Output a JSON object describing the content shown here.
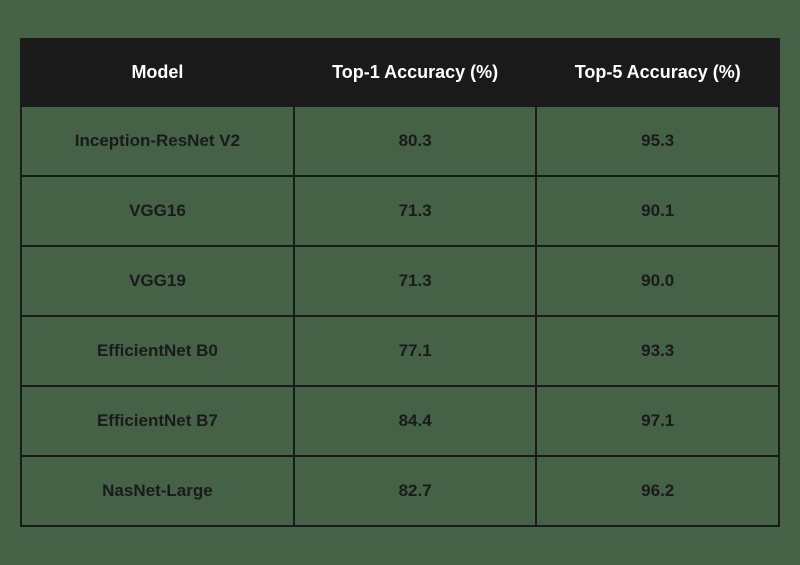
{
  "table": {
    "type": "table",
    "columns": [
      {
        "label": "Model",
        "width_pct": 36,
        "align": "center"
      },
      {
        "label": "Top-1 Accuracy (%)",
        "width_pct": 32,
        "align": "center"
      },
      {
        "label": "Top-5 Accuracy (%)",
        "width_pct": 32,
        "align": "center"
      }
    ],
    "rows": [
      [
        "Inception-ResNet V2",
        "80.3",
        "95.3"
      ],
      [
        "VGG16",
        "71.3",
        "90.1"
      ],
      [
        "VGG19",
        "71.3",
        "90.0"
      ],
      [
        "EfficientNet B0",
        "77.1",
        "93.3"
      ],
      [
        "EfficientNet B7",
        "84.4",
        "97.1"
      ],
      [
        "NasNet-Large",
        "82.7",
        "96.2"
      ]
    ],
    "header_bg_color": "#1a1a1a",
    "header_text_color": "#ffffff",
    "body_bg_color": "#456247",
    "body_text_color": "#1a1a1a",
    "border_color": "#1a1a1a",
    "border_width": 2,
    "header_font_size": 18,
    "body_font_size": 17,
    "font_weight": 700,
    "header_padding_vertical": 22,
    "body_padding_vertical": 24
  },
  "background_color": "#456247"
}
